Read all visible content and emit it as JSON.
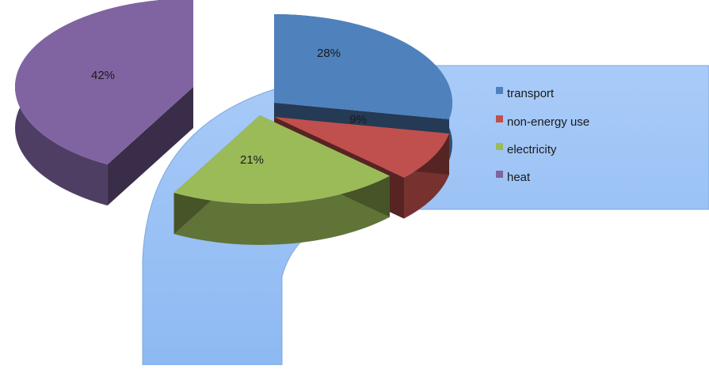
{
  "chart_data": {
    "type": "pie",
    "title": "",
    "categories": [
      "transport",
      "non-energy use",
      "electricity",
      "heat"
    ],
    "values": [
      28,
      9,
      21,
      42
    ],
    "data_labels": [
      "28%",
      "9%",
      "21%",
      "42%"
    ],
    "legend_position": "right",
    "exploded": true,
    "three_d": true,
    "colors": {
      "transport": "#4f81bd",
      "non-energy use": "#c0504d",
      "electricity": "#9bbb59",
      "heat": "#8064a2",
      "backdrop_arrow": "#99c2f8"
    }
  }
}
